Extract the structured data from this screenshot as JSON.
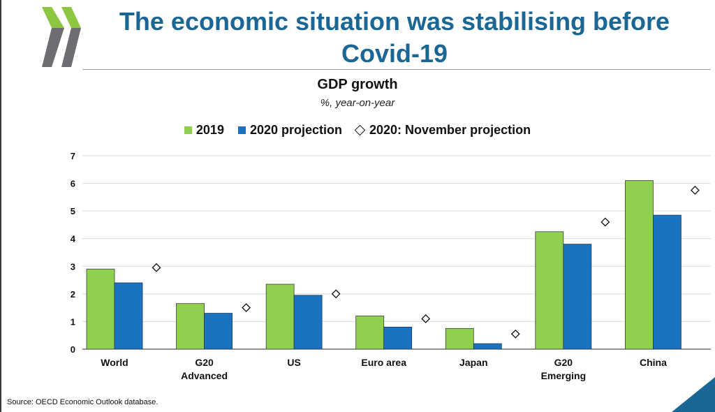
{
  "header": {
    "title": "The economic situation was stabilising before Covid-19"
  },
  "colors": {
    "s2019": "#8fd14f",
    "s2020": "#1b72c0",
    "title": "#1a6694",
    "logo_green": "#8dc63f",
    "logo_grey": "#6d6e71",
    "corner": "#1a6694"
  },
  "chart_data": {
    "type": "bar",
    "title": "GDP growth",
    "subtitle": "%, year-on-year",
    "categories": [
      "World",
      "G20\nAdvanced",
      "US",
      "Euro area",
      "Japan",
      "G20\nEmerging",
      "China"
    ],
    "series": [
      {
        "name": "2019",
        "type": "bar",
        "values": [
          2.9,
          1.65,
          2.35,
          1.2,
          0.75,
          4.25,
          6.1
        ]
      },
      {
        "name": "2020 projection",
        "type": "bar",
        "values": [
          2.4,
          1.3,
          1.95,
          0.8,
          0.2,
          3.8,
          4.85
        ]
      },
      {
        "name": "2020: November projection",
        "type": "marker",
        "values": [
          2.95,
          1.5,
          2.0,
          1.1,
          0.55,
          4.6,
          5.75
        ]
      }
    ],
    "ylim": [
      0,
      7
    ],
    "yticks": [
      0,
      1,
      2,
      3,
      4,
      5,
      6,
      7
    ],
    "grid": true,
    "legend": "top"
  },
  "source": "Source: OECD Economic Outlook database."
}
